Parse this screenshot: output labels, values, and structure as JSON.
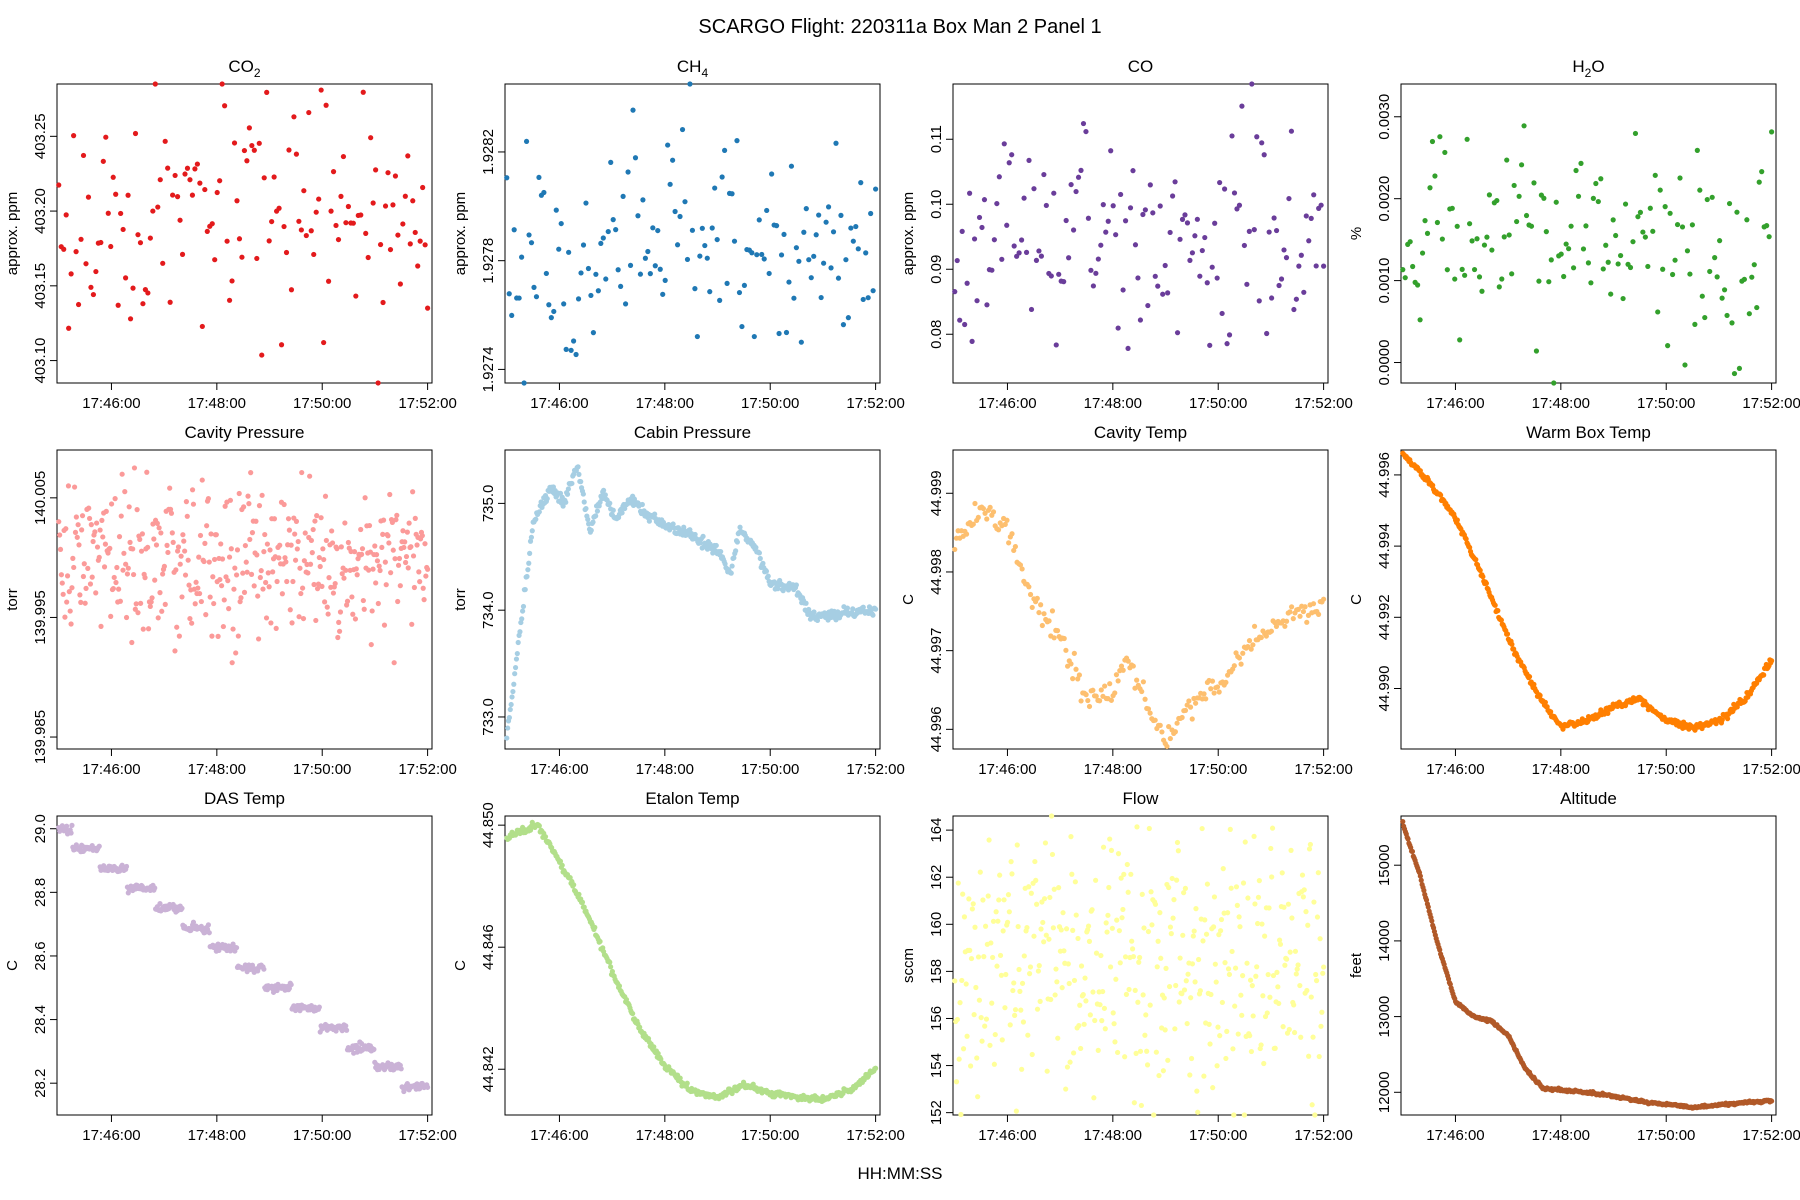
{
  "figure": {
    "title": "SCARGO Flight: 220311a  Box Man 2 Panel 1",
    "xlabel": "HH:MM:SS"
  },
  "chart_data": [
    {
      "type": "scatter",
      "id": "co2",
      "title_main": "CO",
      "title_sub": "2",
      "ylabel": "approx. ppm",
      "color": "#e31a1c",
      "x_ticks": [
        "17:46:00",
        "17:48:00",
        "17:50:00",
        "17:52:00"
      ],
      "x_range": [
        "17:44:58",
        "17:52:05"
      ],
      "ylim": [
        403.085,
        403.285
      ],
      "y_ticks": [
        403.1,
        403.15,
        403.2,
        403.25
      ],
      "y_tick_labels": [
        "403.10",
        "403.15",
        "403.20",
        "403.25"
      ],
      "n_points": 150,
      "pattern": "noise",
      "mean": 403.19,
      "noise": 0.038
    },
    {
      "type": "scatter",
      "id": "ch4",
      "title_main": "CH",
      "title_sub": "4",
      "ylabel": "approx. ppm",
      "color": "#1f78b4",
      "x_ticks": [
        "17:46:00",
        "17:48:00",
        "17:50:00",
        "17:52:00"
      ],
      "x_range": [
        "17:44:58",
        "17:52:05"
      ],
      "ylim": [
        1.92735,
        1.92845
      ],
      "y_ticks": [
        1.9274,
        1.9278,
        1.9282
      ],
      "y_tick_labels": [
        "1.9274",
        "1.9278",
        "1.9282"
      ],
      "n_points": 150,
      "pattern": "noise",
      "mean": 1.92785,
      "noise": 0.00021
    },
    {
      "type": "scatter",
      "id": "co",
      "title_main": "CO",
      "title_sub": "",
      "ylabel": "approx. ppm",
      "color": "#6a3d9a",
      "x_ticks": [
        "17:46:00",
        "17:48:00",
        "17:50:00",
        "17:52:00"
      ],
      "x_range": [
        "17:44:58",
        "17:52:05"
      ],
      "ylim": [
        0.0725,
        0.1185
      ],
      "y_ticks": [
        0.08,
        0.09,
        0.1,
        0.11
      ],
      "y_tick_labels": [
        "0.08",
        "0.09",
        "0.10",
        "0.11"
      ],
      "n_points": 150,
      "pattern": "noise",
      "mean": 0.0955,
      "noise": 0.0085
    },
    {
      "type": "scatter",
      "id": "h2o",
      "title_main": "H",
      "title_sub": "2",
      "title_tail": "O",
      "ylabel": "%",
      "color": "#33a02c",
      "x_ticks": [
        "17:46:00",
        "17:48:00",
        "17:50:00",
        "17:52:00"
      ],
      "x_range": [
        "17:44:58",
        "17:52:05"
      ],
      "ylim": [
        -0.00025,
        0.0034
      ],
      "y_ticks": [
        0.0,
        0.001,
        0.002,
        0.003
      ],
      "y_tick_labels": [
        "0.0000",
        "0.0010",
        "0.0020",
        "0.0030"
      ],
      "n_points": 150,
      "pattern": "noise",
      "mean": 0.0015,
      "noise": 0.0006
    },
    {
      "type": "scatter",
      "id": "cavity-pressure",
      "title_main": "Cavity Pressure",
      "title_sub": "",
      "ylabel": "torr",
      "color": "#fb9a99",
      "x_ticks": [
        "17:46:00",
        "17:48:00",
        "17:50:00",
        "17:52:00"
      ],
      "x_range": [
        "17:44:58",
        "17:52:05"
      ],
      "ylim": [
        139.984,
        140.009
      ],
      "y_ticks": [
        139.985,
        139.995,
        140.005
      ],
      "y_tick_labels": [
        "139.985",
        "139.995",
        "140.005"
      ],
      "n_points": 420,
      "pattern": "noise",
      "mean": 139.9995,
      "noise": 0.0032
    },
    {
      "type": "scatter",
      "id": "cabin-pressure",
      "title_main": "Cabin Pressure",
      "title_sub": "",
      "ylabel": "torr",
      "color": "#a6cee3",
      "x_ticks": [
        "17:46:00",
        "17:48:00",
        "17:50:00",
        "17:52:00"
      ],
      "x_range": [
        "17:44:58",
        "17:52:05"
      ],
      "ylim": [
        732.7,
        735.5
      ],
      "y_ticks": [
        733.0,
        734.0,
        735.0
      ],
      "y_tick_labels": [
        "733.0",
        "734.0",
        "735.0"
      ],
      "n_points": 420,
      "pattern": "curve",
      "noise": 0.025,
      "keys": [
        [
          "17:45:00",
          732.8
        ],
        [
          "17:45:15",
          733.8
        ],
        [
          "17:45:30",
          734.8
        ],
        [
          "17:45:50",
          735.15
        ],
        [
          "17:46:05",
          735.0
        ],
        [
          "17:46:20",
          735.35
        ],
        [
          "17:46:35",
          734.75
        ],
        [
          "17:46:50",
          735.1
        ],
        [
          "17:47:05",
          734.85
        ],
        [
          "17:47:20",
          735.05
        ],
        [
          "17:47:40",
          734.9
        ],
        [
          "17:48:00",
          734.8
        ],
        [
          "17:48:30",
          734.7
        ],
        [
          "17:49:00",
          734.55
        ],
        [
          "17:49:15",
          734.35
        ],
        [
          "17:49:25",
          734.75
        ],
        [
          "17:49:45",
          734.55
        ],
        [
          "17:50:00",
          734.25
        ],
        [
          "17:50:30",
          734.2
        ],
        [
          "17:50:45",
          733.95
        ],
        [
          "17:51:15",
          733.95
        ],
        [
          "17:52:00",
          734.0
        ]
      ]
    },
    {
      "type": "scatter",
      "id": "cavity-temp",
      "title_main": "Cavity Temp",
      "title_sub": "",
      "ylabel": "C",
      "color": "#fdbf6f",
      "x_ticks": [
        "17:46:00",
        "17:48:00",
        "17:50:00",
        "17:52:00"
      ],
      "x_range": [
        "17:44:58",
        "17:52:05"
      ],
      "ylim": [
        44.99575,
        44.99955
      ],
      "y_ticks": [
        44.996,
        44.997,
        44.998,
        44.999
      ],
      "y_tick_labels": [
        "44.996",
        "44.997",
        "44.998",
        "44.999"
      ],
      "n_points": 220,
      "pattern": "curve",
      "noise": 7e-05,
      "keys": [
        [
          "17:45:00",
          44.99835
        ],
        [
          "17:45:30",
          44.9988
        ],
        [
          "17:46:00",
          44.99855
        ],
        [
          "17:46:30",
          44.9976
        ],
        [
          "17:47:00",
          44.99715
        ],
        [
          "17:47:30",
          44.9964
        ],
        [
          "17:48:00",
          44.99645
        ],
        [
          "17:48:15",
          44.99695
        ],
        [
          "17:48:45",
          44.99615
        ],
        [
          "17:49:00",
          44.9959
        ],
        [
          "17:49:30",
          44.99635
        ],
        [
          "17:50:00",
          44.9965
        ],
        [
          "17:50:30",
          44.99705
        ],
        [
          "17:51:00",
          44.99725
        ],
        [
          "17:51:30",
          44.9975
        ],
        [
          "17:52:00",
          44.9976
        ]
      ]
    },
    {
      "type": "scatter",
      "id": "warm-box-temp",
      "title_main": "Warm Box Temp",
      "title_sub": "",
      "ylabel": "C",
      "color": "#ff7f00",
      "x_ticks": [
        "17:46:00",
        "17:48:00",
        "17:50:00",
        "17:52:00"
      ],
      "x_range": [
        "17:44:58",
        "17:52:05"
      ],
      "ylim": [
        44.9883,
        44.9967
      ],
      "y_ticks": [
        44.99,
        44.992,
        44.994,
        44.996
      ],
      "y_tick_labels": [
        "44.990",
        "44.992",
        "44.994",
        "44.996"
      ],
      "n_points": 420,
      "pattern": "curve",
      "noise": 4e-05,
      "keys": [
        [
          "17:45:00",
          44.9966
        ],
        [
          "17:45:30",
          44.9958
        ],
        [
          "17:46:00",
          44.9948
        ],
        [
          "17:46:30",
          44.9932
        ],
        [
          "17:47:00",
          44.9914
        ],
        [
          "17:47:30",
          44.99
        ],
        [
          "17:48:00",
          44.9889
        ],
        [
          "17:48:30",
          44.9891
        ],
        [
          "17:49:00",
          44.9895
        ],
        [
          "17:49:30",
          44.9897
        ],
        [
          "17:50:00",
          44.9891
        ],
        [
          "17:50:30",
          44.9889
        ],
        [
          "17:51:00",
          44.9891
        ],
        [
          "17:51:30",
          44.9897
        ],
        [
          "17:52:00",
          44.9908
        ]
      ]
    },
    {
      "type": "scatter",
      "id": "das-temp",
      "title_main": "DAS Temp",
      "title_sub": "",
      "ylabel": "C",
      "color": "#cab2d6",
      "x_ticks": [
        "17:46:00",
        "17:48:00",
        "17:50:00",
        "17:52:00"
      ],
      "x_range": [
        "17:44:58",
        "17:52:05"
      ],
      "ylim": [
        28.1,
        29.04
      ],
      "y_ticks": [
        28.2,
        28.4,
        28.6,
        28.8,
        29.0
      ],
      "y_tick_labels": [
        "28.2",
        "28.4",
        "28.6",
        "28.8",
        "29.0"
      ],
      "n_points": 420,
      "pattern": "curve",
      "noise": 0.006,
      "step": 0.0625,
      "keys": [
        [
          "17:45:00",
          29.0
        ],
        [
          "17:52:00",
          28.16
        ]
      ]
    },
    {
      "type": "scatter",
      "id": "etalon-temp",
      "title_main": "Etalon Temp",
      "title_sub": "",
      "ylabel": "C",
      "color": "#b2df8a",
      "x_ticks": [
        "17:46:00",
        "17:48:00",
        "17:50:00",
        "17:52:00"
      ],
      "x_range": [
        "17:44:58",
        "17:52:05"
      ],
      "ylim": [
        44.8405,
        44.8503
      ],
      "y_ticks": [
        44.842,
        44.846,
        44.85
      ],
      "y_tick_labels": [
        "44.842",
        "44.846",
        "44.850"
      ],
      "n_points": 420,
      "pattern": "curve",
      "noise": 5e-05,
      "keys": [
        [
          "17:45:00",
          44.8496
        ],
        [
          "17:45:35",
          44.85
        ],
        [
          "17:46:00",
          44.8488
        ],
        [
          "17:46:30",
          44.8472
        ],
        [
          "17:47:00",
          44.8452
        ],
        [
          "17:47:30",
          44.8434
        ],
        [
          "17:48:00",
          44.8421
        ],
        [
          "17:48:30",
          44.8413
        ],
        [
          "17:49:00",
          44.8411
        ],
        [
          "17:49:30",
          44.8415
        ],
        [
          "17:50:00",
          44.8412
        ],
        [
          "17:50:30",
          44.8411
        ],
        [
          "17:51:00",
          44.841
        ],
        [
          "17:51:30",
          44.8413
        ],
        [
          "17:52:00",
          44.842
        ]
      ]
    },
    {
      "type": "scatter",
      "id": "flow",
      "title_main": "Flow",
      "title_sub": "",
      "ylabel": "sccm",
      "color": "#ffff99",
      "x_ticks": [
        "17:46:00",
        "17:48:00",
        "17:50:00",
        "17:52:00"
      ],
      "x_range": [
        "17:44:58",
        "17:52:05"
      ],
      "ylim": [
        151.9,
        164.6
      ],
      "y_ticks": [
        152,
        154,
        156,
        158,
        160,
        162,
        164
      ],
      "y_tick_labels": [
        "152",
        "154",
        "156",
        "158",
        "160",
        "162",
        "164"
      ],
      "n_points": 420,
      "pattern": "noise",
      "mean": 158.2,
      "noise": 2.8
    },
    {
      "type": "scatter",
      "id": "altitude",
      "title_main": "Altitude",
      "title_sub": "",
      "ylabel": "feet",
      "color": "#b15928",
      "x_ticks": [
        "17:46:00",
        "17:48:00",
        "17:50:00",
        "17:52:00"
      ],
      "x_range": [
        "17:44:58",
        "17:52:05"
      ],
      "ylim": [
        11700,
        15650
      ],
      "y_ticks": [
        12000,
        13000,
        14000,
        15000
      ],
      "y_tick_labels": [
        "12000",
        "13000",
        "14000",
        "15000"
      ],
      "n_points": 420,
      "pattern": "curve",
      "noise": 8,
      "keys": [
        [
          "17:45:00",
          15550
        ],
        [
          "17:45:20",
          14850
        ],
        [
          "17:45:40",
          13950
        ],
        [
          "17:46:00",
          13200
        ],
        [
          "17:46:20",
          13000
        ],
        [
          "17:46:40",
          12950
        ],
        [
          "17:47:00",
          12750
        ],
        [
          "17:47:20",
          12300
        ],
        [
          "17:47:40",
          12050
        ],
        [
          "17:48:00",
          12030
        ],
        [
          "17:48:30",
          12000
        ],
        [
          "17:49:00",
          11950
        ],
        [
          "17:49:30",
          11880
        ],
        [
          "17:50:00",
          11840
        ],
        [
          "17:50:30",
          11800
        ],
        [
          "17:51:00",
          11830
        ],
        [
          "17:51:30",
          11870
        ],
        [
          "17:52:00",
          11890
        ]
      ]
    }
  ]
}
